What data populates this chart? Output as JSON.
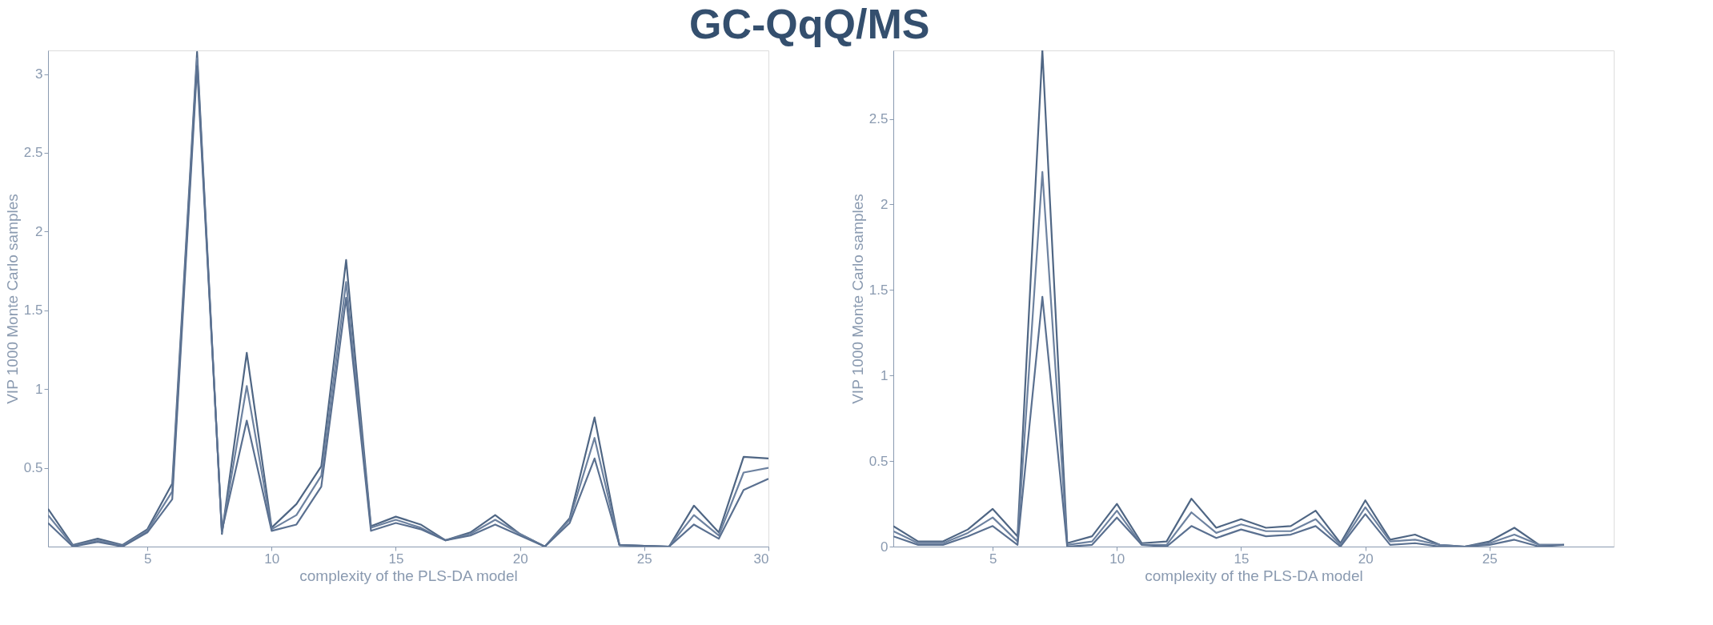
{
  "chart_data": [
    {
      "type": "line",
      "title": "GC-QqQ/MS",
      "xlabel": "complexity of the PLS-DA model",
      "ylabel": "VIP 1000 Monte Carlo samples",
      "x": [
        1,
        2,
        3,
        4,
        5,
        6,
        7,
        8,
        9,
        10,
        11,
        12,
        13,
        14,
        15,
        16,
        17,
        18,
        19,
        20,
        21,
        22,
        23,
        24,
        25,
        26,
        27,
        28,
        29,
        30
      ],
      "xlim": [
        1,
        30
      ],
      "xticks": [
        5,
        10,
        15,
        20,
        25,
        30
      ],
      "ylim": [
        0,
        3.15
      ],
      "yticks": [
        0.5,
        1,
        1.5,
        2,
        2.5,
        3
      ],
      "grid": false,
      "series": [
        {
          "color": "#4f6684",
          "values": [
            0.24,
            0.01,
            0.05,
            0.01,
            0.11,
            0.4,
            3.14,
            0.08,
            1.23,
            0.12,
            0.27,
            0.51,
            1.82,
            0.13,
            0.19,
            0.14,
            0.04,
            0.09,
            0.2,
            0.08,
            0.0,
            0.18,
            0.82,
            0.01,
            0.005,
            0.0,
            0.26,
            0.09,
            0.57,
            0.56
          ]
        },
        {
          "color": "#6d82a0",
          "values": [
            0.2,
            0.005,
            0.04,
            0.005,
            0.1,
            0.35,
            3.1,
            0.09,
            1.02,
            0.11,
            0.2,
            0.45,
            1.68,
            0.12,
            0.17,
            0.12,
            0.04,
            0.08,
            0.17,
            0.08,
            0.0,
            0.17,
            0.69,
            0.01,
            0.005,
            0.0,
            0.2,
            0.07,
            0.47,
            0.5
          ]
        },
        {
          "color": "#5a7090",
          "values": [
            0.15,
            0.0,
            0.03,
            0.0,
            0.09,
            0.3,
            3.05,
            0.1,
            0.8,
            0.1,
            0.14,
            0.38,
            1.58,
            0.1,
            0.15,
            0.11,
            0.04,
            0.07,
            0.14,
            0.07,
            0.0,
            0.15,
            0.56,
            0.01,
            0.005,
            0.0,
            0.14,
            0.05,
            0.36,
            0.43
          ]
        }
      ]
    },
    {
      "type": "line",
      "xlabel": "complexity of the PLS-DA model",
      "ylabel": "VIP 1000 Monte Carlo samples",
      "x": [
        1,
        2,
        3,
        4,
        5,
        6,
        7,
        8,
        9,
        10,
        11,
        12,
        13,
        14,
        15,
        16,
        17,
        18,
        19,
        20,
        21,
        22,
        23,
        24,
        25,
        26,
        27,
        28
      ],
      "xlim": [
        1,
        30
      ],
      "xticks": [
        5,
        10,
        15,
        20,
        25
      ],
      "ylim": [
        0,
        2.9
      ],
      "yticks": [
        0,
        0.5,
        1,
        1.5,
        2,
        2.5
      ],
      "grid": false,
      "series": [
        {
          "color": "#4f6684",
          "values": [
            0.12,
            0.03,
            0.03,
            0.1,
            0.22,
            0.06,
            2.9,
            0.02,
            0.06,
            0.25,
            0.02,
            0.03,
            0.28,
            0.11,
            0.16,
            0.11,
            0.12,
            0.21,
            0.02,
            0.27,
            0.04,
            0.07,
            0.01,
            0.0,
            0.03,
            0.11,
            0.01,
            0.01
          ]
        },
        {
          "color": "#6d82a0",
          "values": [
            0.09,
            0.02,
            0.02,
            0.08,
            0.17,
            0.03,
            2.19,
            0.01,
            0.03,
            0.21,
            0.01,
            0.01,
            0.2,
            0.08,
            0.13,
            0.09,
            0.09,
            0.16,
            0.01,
            0.23,
            0.03,
            0.04,
            0.01,
            0.0,
            0.02,
            0.07,
            0.01,
            0.01
          ]
        },
        {
          "color": "#5a7090",
          "values": [
            0.06,
            0.01,
            0.01,
            0.06,
            0.12,
            0.01,
            1.46,
            0.0,
            0.01,
            0.17,
            0.01,
            0.0,
            0.12,
            0.05,
            0.1,
            0.06,
            0.07,
            0.12,
            0.0,
            0.19,
            0.01,
            0.02,
            0.0,
            0.0,
            0.01,
            0.04,
            0.0,
            0.01
          ]
        }
      ]
    }
  ]
}
